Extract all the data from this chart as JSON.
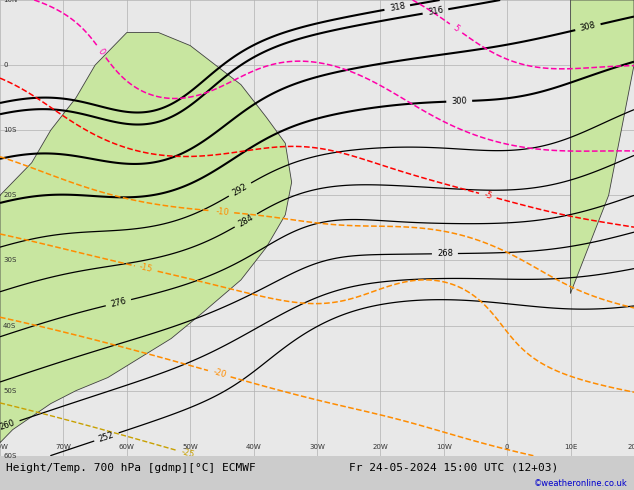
{
  "title_left": "Height/Temp. 700 hPa [gdmp][°C] ECMWF",
  "title_right": "Fr 24-05-2024 15:00 UTC (12+03)",
  "credit": "©weatheronline.co.uk",
  "background_land": "#c8e6a0",
  "background_sea": "#e8e8e8",
  "grid_color": "#b0b0b0",
  "contour_height_color": "#000000",
  "contour_temp_pink_color": "#ff00aa",
  "contour_temp_red_color": "#ff0000",
  "contour_temp_orange_color": "#ff8c00",
  "contour_temp_yellow_color": "#c8a000",
  "contour_temp_green_color": "#00bb44",
  "label_fontsize": 6,
  "title_fontsize": 8,
  "figsize": [
    6.34,
    4.9
  ],
  "dpi": 100,
  "lon_min": -80,
  "lon_max": 20,
  "lat_min": -60,
  "lat_max": 10,
  "border_color": "#404040",
  "height_levels": [
    252,
    260,
    268,
    276,
    284,
    292,
    300,
    308,
    316,
    318
  ],
  "sa_lons": [
    -80,
    -78,
    -75,
    -72,
    -68,
    -65,
    -60,
    -55,
    -50,
    -46,
    -42,
    -38,
    -35,
    -34,
    -35,
    -38,
    -42,
    -48,
    -53,
    -58,
    -63,
    -68,
    -72,
    -75,
    -78,
    -80,
    -80
  ],
  "sa_lats": [
    -20,
    -18,
    -15,
    -10,
    -5,
    0,
    5,
    5,
    3,
    0,
    -3,
    -8,
    -12,
    -18,
    -23,
    -28,
    -33,
    -38,
    -42,
    -45,
    -48,
    -50,
    -52,
    -54,
    -56,
    -58,
    -20
  ],
  "af_lons": [
    10,
    12,
    14,
    16,
    18,
    20,
    20,
    10,
    10
  ],
  "af_lats": [
    -35,
    -30,
    -25,
    -20,
    -10,
    0,
    10,
    10,
    -35
  ]
}
